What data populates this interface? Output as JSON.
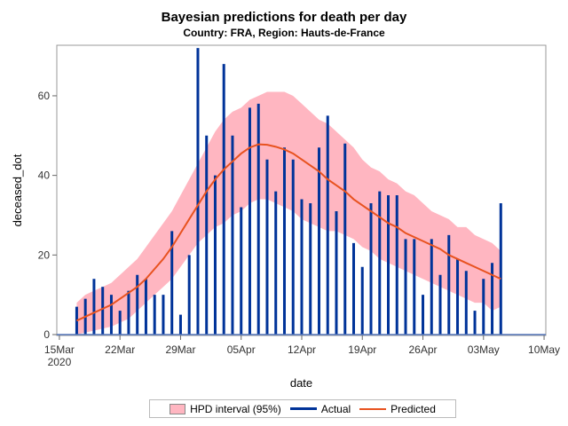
{
  "chart_data": {
    "type": "bar+line+area",
    "title": "Bayesian predictions for death per day",
    "subtitle": "Country: FRA, Region: Hauts-de-France",
    "xlabel": "date",
    "ylabel": "deceased_dot",
    "x_start": "2020-03-17",
    "x_ticks": [
      {
        "date": "2020-03-15",
        "label": "15Mar",
        "sub": "2020"
      },
      {
        "date": "2020-03-22",
        "label": "22Mar"
      },
      {
        "date": "2020-03-29",
        "label": "29Mar"
      },
      {
        "date": "2020-04-05",
        "label": "05Apr"
      },
      {
        "date": "2020-04-12",
        "label": "12Apr"
      },
      {
        "date": "2020-04-19",
        "label": "19Apr"
      },
      {
        "date": "2020-04-26",
        "label": "26Apr"
      },
      {
        "date": "2020-05-03",
        "label": "03May"
      },
      {
        "date": "2020-05-10",
        "label": "10May"
      }
    ],
    "y_ticks": [
      0,
      20,
      40,
      60
    ],
    "xlim": [
      "2020-03-14",
      "2020-05-10"
    ],
    "ylim": [
      0,
      72.7
    ],
    "grid": false,
    "legend_position": "bottom",
    "colors": {
      "band": "#FFB6C1",
      "actual": "#003399",
      "predicted": "#E8521F"
    },
    "series": [
      {
        "name": "Actual",
        "type": "needle",
        "values": [
          7,
          9,
          14,
          12,
          10,
          6,
          11,
          15,
          14,
          10,
          10,
          26,
          5,
          20,
          72,
          50,
          40,
          68,
          50,
          32,
          57,
          58,
          44,
          36,
          47,
          44,
          34,
          33,
          47,
          55,
          31,
          48,
          23,
          17,
          33,
          36,
          35,
          35,
          24,
          24,
          10,
          24,
          15,
          25,
          19,
          16,
          6,
          14,
          18,
          33
        ]
      },
      {
        "name": "Predicted",
        "type": "line",
        "values": [
          3.5,
          4.5,
          5.5,
          6.5,
          7.5,
          9,
          10.5,
          12,
          14,
          16.5,
          19,
          22,
          25.5,
          29,
          32.5,
          36,
          39,
          41.5,
          43.5,
          45.5,
          47,
          47.8,
          47.7,
          47.2,
          46.5,
          45.5,
          44,
          42.5,
          41,
          39,
          37.5,
          36,
          34,
          32.5,
          31,
          29.5,
          28,
          27,
          25.5,
          24.5,
          23.5,
          22.5,
          21.5,
          20,
          19,
          18,
          17,
          16,
          15,
          14
        ]
      },
      {
        "name": "HPD interval (95%)",
        "type": "band",
        "upper": [
          8,
          10,
          11,
          12,
          13,
          15,
          17,
          19,
          22,
          25,
          28,
          31,
          35,
          39,
          43,
          47,
          51,
          54,
          56,
          57,
          59,
          60,
          61,
          61,
          61,
          60,
          58,
          56,
          54,
          53,
          51,
          49,
          47,
          44,
          42,
          41,
          39,
          38,
          36,
          35,
          33,
          31,
          30,
          29,
          27,
          27,
          25,
          24,
          23,
          21
        ],
        "lower": [
          0,
          0.5,
          1,
          1.5,
          2,
          3,
          4,
          6,
          8,
          10,
          12,
          14,
          17,
          20,
          23,
          25,
          27,
          28,
          30,
          31,
          33,
          34,
          34,
          33,
          32,
          31,
          29,
          28,
          27,
          26,
          26,
          25,
          24,
          22,
          21,
          19,
          18,
          17,
          16,
          15,
          14,
          13,
          12,
          11,
          10,
          9,
          8,
          8,
          6,
          7
        ]
      }
    ]
  }
}
